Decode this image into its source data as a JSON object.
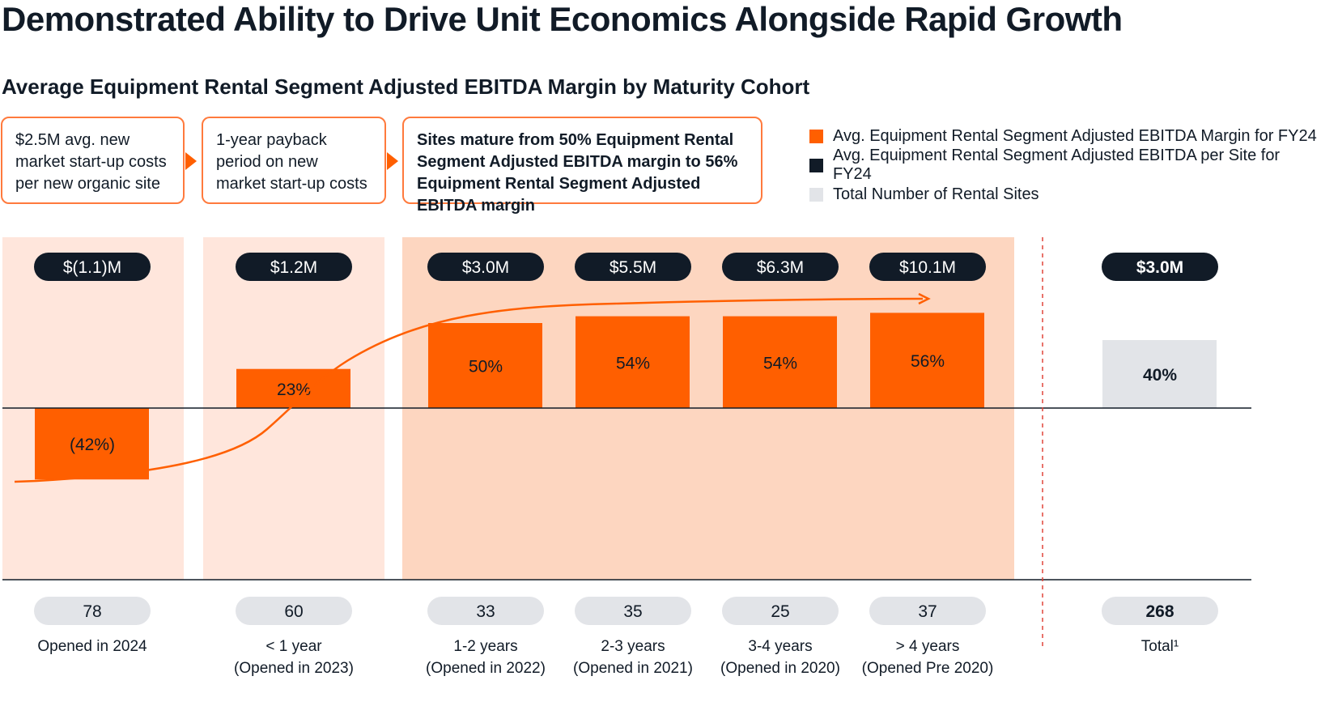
{
  "title": "Demonstrated Ability to Drive Unit Economics Alongside Rapid Growth",
  "subtitle": "Average Equipment Rental Segment Adjusted EBITDA Margin by Maturity Cohort",
  "callouts": [
    "$2.5M avg. new market start-up costs per new organic site",
    "1-year payback period on new market start-up costs",
    "Sites mature from 50% Equipment Rental Segment Adjusted EBITDA margin to 56% Equipment Rental Segment Adjusted EBITDA margin"
  ],
  "legend": [
    {
      "label": "Avg. Equipment Rental Segment Adjusted EBITDA Margin for FY24",
      "color": "#ff5f00"
    },
    {
      "label": "Avg. Equipment Rental Segment Adjusted EBITDA per Site for FY24",
      "color": "#111b27"
    },
    {
      "label": "Total Number of Rental Sites",
      "color": "#e2e4e8"
    }
  ],
  "chart_data": {
    "type": "bar",
    "categories": [
      [
        "Opened in 2024",
        ""
      ],
      [
        "< 1 year",
        "(Opened in 2023)"
      ],
      [
        "1-2 years",
        "(Opened in 2022)"
      ],
      [
        "2-3 years",
        "(Opened in 2021)"
      ],
      [
        "3-4 years",
        "(Opened in 2020)"
      ],
      [
        "> 4 years",
        "(Opened Pre 2020)"
      ],
      [
        "Total¹",
        ""
      ]
    ],
    "margin_pct": [
      -42,
      23,
      50,
      54,
      54,
      56,
      40
    ],
    "margin_labels": [
      "(42%)",
      "23%",
      "50%",
      "54%",
      "54%",
      "56%",
      "40%"
    ],
    "ebitda_per_site": [
      "$(1.1)M",
      "$1.2M",
      "$3.0M",
      "$5.5M",
      "$6.3M",
      "$10.1M",
      "$3.0M"
    ],
    "site_counts": [
      78,
      60,
      33,
      35,
      25,
      37,
      268
    ],
    "colors": {
      "bar": "#ff5f00",
      "total_bar": "#e2e4e8",
      "pill": "#111b27",
      "count_pill": "#e2e4e8",
      "panel_light": "#ffe6dc",
      "panel_mature": "#fdd6c0",
      "trend": "#ff5f00",
      "divider": "#e0453a"
    }
  }
}
